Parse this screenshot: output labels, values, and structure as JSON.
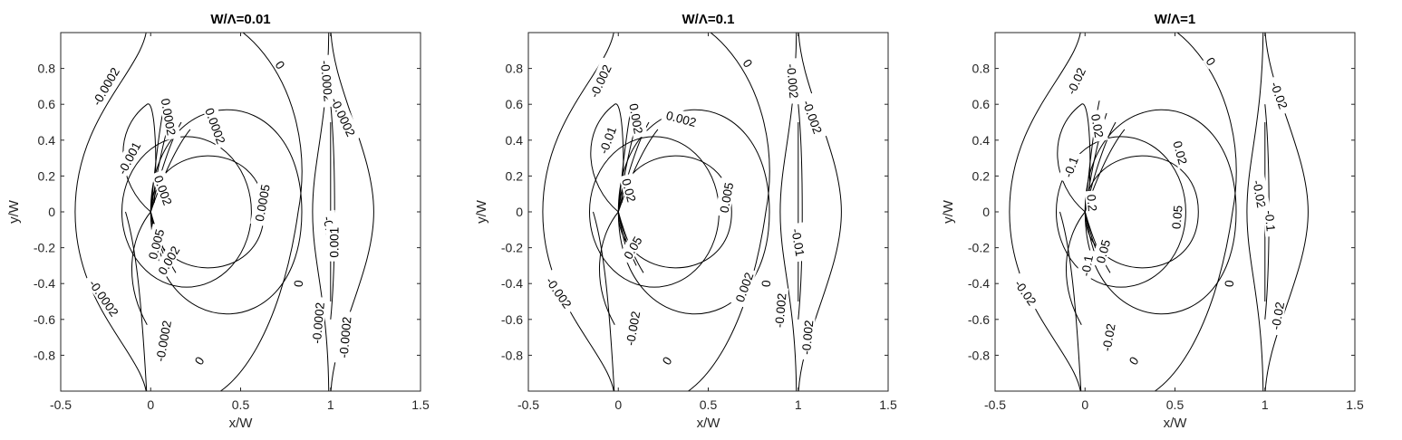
{
  "chart_data": [
    {
      "type": "contour",
      "title": "W/Λ=0.01",
      "xlabel": "x/W",
      "ylabel": "y/W",
      "xlim": [
        -0.5,
        1.5
      ],
      "ylim": [
        -1,
        1
      ],
      "xticks": [
        "-0.5",
        "0",
        "0.5",
        "1",
        "1.5"
      ],
      "yticks": [
        "-0.8",
        "-0.6",
        "-0.4",
        "-0.2",
        "0",
        "0.2",
        "0.4",
        "0.6",
        "0.8"
      ],
      "levels": {
        "ring_inner": "",
        "ring_mid": "0.0005",
        "ring_outer": "0.0002",
        "zero": "0",
        "left_near": "-0.001",
        "left_far": "-0.0002",
        "right_inner": "-0.001",
        "right_outer": "-0.0002"
      },
      "labels": [
        {
          "text": "-0.0002",
          "x": -0.25,
          "y": 0.7,
          "angle": -60
        },
        {
          "text": "-0.001",
          "x": -0.12,
          "y": 0.3,
          "angle": -62
        },
        {
          "text": "0.0002",
          "x": 0.1,
          "y": 0.53,
          "angle": 80
        },
        {
          "text": "0.0002",
          "x": 0.36,
          "y": 0.48,
          "angle": 70
        },
        {
          "text": "0.002",
          "x": 0.07,
          "y": 0.12,
          "angle": 70
        },
        {
          "text": "0.0005",
          "x": 0.62,
          "y": 0.05,
          "angle": -80
        },
        {
          "text": "0",
          "x": 0.72,
          "y": 0.82,
          "angle": 55
        },
        {
          "text": "0",
          "x": 0.82,
          "y": -0.4,
          "angle": -85
        },
        {
          "text": "0",
          "x": 0.27,
          "y": -0.83,
          "angle": -55
        },
        {
          "text": "-0.0002",
          "x": 0.98,
          "y": 0.73,
          "angle": 85
        },
        {
          "text": "-0.0002",
          "x": 1.07,
          "y": 0.53,
          "angle": 65
        },
        {
          "text": "-0.001",
          "x": 1.0,
          "y": -0.12,
          "angle": 80
        },
        {
          "text": "0.001",
          "x": 1.02,
          "y": -0.17,
          "angle": -90
        },
        {
          "text": "-0.0002",
          "x": 0.93,
          "y": -0.62,
          "angle": -85
        },
        {
          "text": "-0.0002",
          "x": 1.08,
          "y": -0.7,
          "angle": -85
        },
        {
          "text": "-0.0002",
          "x": -0.26,
          "y": -0.48,
          "angle": 55
        },
        {
          "text": "-0.0002",
          "x": 0.07,
          "y": -0.72,
          "angle": -80
        },
        {
          "text": "0.005",
          "x": 0.03,
          "y": -0.18,
          "angle": -75
        },
        {
          "text": "0.002",
          "x": 0.1,
          "y": -0.27,
          "angle": -60
        }
      ]
    },
    {
      "type": "contour",
      "title": "W/Λ=0.1",
      "xlabel": "x/W",
      "ylabel": "y/W",
      "xlim": [
        -0.5,
        1.5
      ],
      "ylim": [
        -1,
        1
      ],
      "xticks": [
        "-0.5",
        "0",
        "0.5",
        "1",
        "1.5"
      ],
      "yticks": [
        "-0.8",
        "-0.6",
        "-0.4",
        "-0.2",
        "0",
        "0.2",
        "0.4",
        "0.6",
        "0.8"
      ],
      "labels": [
        {
          "text": "-0.002",
          "x": -0.1,
          "y": 0.73,
          "angle": -65
        },
        {
          "text": "-0.01",
          "x": -0.06,
          "y": 0.4,
          "angle": -70
        },
        {
          "text": "0.002",
          "x": 0.1,
          "y": 0.52,
          "angle": 80
        },
        {
          "text": "0.002",
          "x": 0.35,
          "y": 0.52,
          "angle": 15
        },
        {
          "text": "0.02",
          "x": 0.06,
          "y": 0.12,
          "angle": 75
        },
        {
          "text": "0.005",
          "x": 0.6,
          "y": 0.08,
          "angle": -80
        },
        {
          "text": "0",
          "x": 0.72,
          "y": 0.83,
          "angle": 55
        },
        {
          "text": "0",
          "x": 0.82,
          "y": -0.4,
          "angle": -85
        },
        {
          "text": "0",
          "x": 0.27,
          "y": -0.83,
          "angle": -55
        },
        {
          "text": "-0.002",
          "x": 0.97,
          "y": 0.73,
          "angle": 85
        },
        {
          "text": "-0.002",
          "x": 1.08,
          "y": 0.53,
          "angle": 70
        },
        {
          "text": "-0.01",
          "x": 1.0,
          "y": -0.17,
          "angle": 80
        },
        {
          "text": "0.002",
          "x": 0.7,
          "y": -0.42,
          "angle": -70
        },
        {
          "text": "-0.002",
          "x": 0.9,
          "y": -0.55,
          "angle": -85
        },
        {
          "text": "-0.002",
          "x": 1.05,
          "y": -0.7,
          "angle": -85
        },
        {
          "text": "-0.002",
          "x": -0.33,
          "y": -0.45,
          "angle": 55
        },
        {
          "text": "-0.002",
          "x": 0.08,
          "y": -0.65,
          "angle": -80
        },
        {
          "text": "0.05",
          "x": 0.08,
          "y": -0.2,
          "angle": -60
        }
      ]
    },
    {
      "type": "contour",
      "title": "W/Λ=1",
      "xlabel": "x/W",
      "ylabel": "y/W",
      "xlim": [
        -0.5,
        1.5
      ],
      "ylim": [
        -1,
        1
      ],
      "xticks": [
        "-0.5",
        "0",
        "0.5",
        "1",
        "1.5"
      ],
      "yticks": [
        "-0.8",
        "-0.6",
        "-0.4",
        "-0.2",
        "0",
        "0.2",
        "0.4",
        "0.6",
        "0.8"
      ],
      "labels": [
        {
          "text": "-0.02",
          "x": -0.05,
          "y": 0.73,
          "angle": -65
        },
        {
          "text": "-0.1",
          "x": -0.08,
          "y": 0.25,
          "angle": -70
        },
        {
          "text": "0.02",
          "x": 0.07,
          "y": 0.48,
          "angle": 80
        },
        {
          "text": "0.02",
          "x": 0.53,
          "y": 0.33,
          "angle": 75
        },
        {
          "text": "0.2",
          "x": 0.04,
          "y": 0.05,
          "angle": 85
        },
        {
          "text": "0.05",
          "x": 0.51,
          "y": -0.03,
          "angle": -85
        },
        {
          "text": "0",
          "x": 0.7,
          "y": 0.84,
          "angle": 55
        },
        {
          "text": "0",
          "x": 0.8,
          "y": -0.4,
          "angle": -85
        },
        {
          "text": "0",
          "x": 0.27,
          "y": -0.83,
          "angle": -55
        },
        {
          "text": "-0.02",
          "x": 1.08,
          "y": 0.65,
          "angle": 70
        },
        {
          "text": "-0.02",
          "x": 0.97,
          "y": 0.1,
          "angle": 80
        },
        {
          "text": "-0.1",
          "x": 1.03,
          "y": -0.05,
          "angle": 85
        },
        {
          "text": "-0.02",
          "x": 1.07,
          "y": -0.58,
          "angle": -80
        },
        {
          "text": "-0.02",
          "x": -0.33,
          "y": -0.45,
          "angle": 55
        },
        {
          "text": "-0.1",
          "x": 0.01,
          "y": -0.3,
          "angle": -80
        },
        {
          "text": "0.05",
          "x": 0.1,
          "y": -0.22,
          "angle": -75
        },
        {
          "text": "-0.02",
          "x": 0.13,
          "y": -0.7,
          "angle": -80
        }
      ]
    }
  ]
}
